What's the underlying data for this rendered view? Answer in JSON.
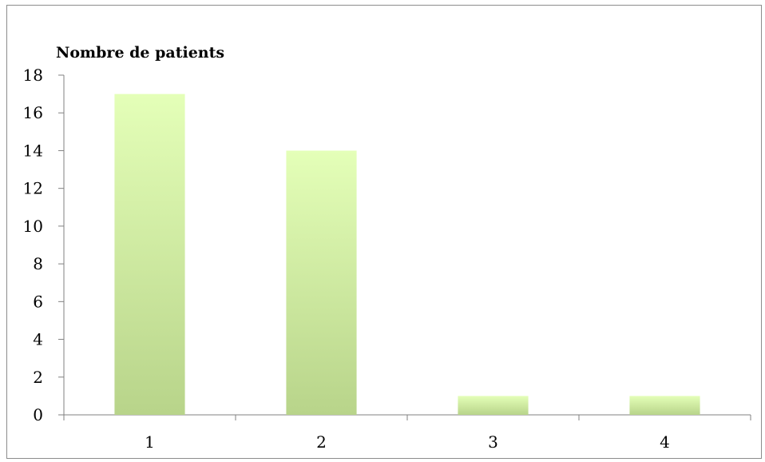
{
  "chart_data": {
    "type": "bar",
    "title": "",
    "xlabel": "",
    "ylabel": "Nombre de patients",
    "categories": [
      "1",
      "2",
      "3",
      "4"
    ],
    "values": [
      17,
      14,
      1,
      1
    ],
    "ylim": [
      0,
      18
    ],
    "yticks": [
      0,
      2,
      4,
      6,
      8,
      10,
      12,
      14,
      16,
      18
    ],
    "grid": false,
    "legend": "none",
    "colors": {
      "bar_top": "#e4ffb8",
      "bar_bottom": "#b8d48a",
      "axis": "#808080"
    }
  }
}
